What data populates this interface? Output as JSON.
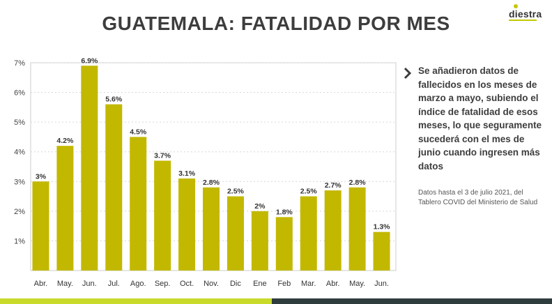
{
  "title": "GUATEMALA: FATALIDAD POR MES",
  "logo": {
    "text": "diestra"
  },
  "note": "Se añadieron datos de fallecidos en los meses de marzo a mayo, subiendo el índice de fatalidad de esos meses, lo que seguramente sucederá con el mes de junio cuando ingresen más datos",
  "source": "Datos hasta el 3 de julio 2021, del Tablero COVID del Ministerio de Salud",
  "colors": {
    "bar": "#c3b800",
    "accent": "#c9da2b",
    "dark": "#2f3c3e",
    "text": "#3d3d3d"
  },
  "chart_data": {
    "type": "bar",
    "title": "",
    "xlabel": "",
    "ylabel": "",
    "categories": [
      "Abr.",
      "May.",
      "Jun.",
      "Jul.",
      "Ago.",
      "Sep.",
      "Oct.",
      "Nov.",
      "Dic",
      "Ene",
      "Feb",
      "Mar.",
      "Abr.",
      "May.",
      "Jun."
    ],
    "values": [
      3,
      4.2,
      6.9,
      5.6,
      4.5,
      3.7,
      3.1,
      2.8,
      2.5,
      2,
      1.8,
      2.5,
      2.7,
      2.8,
      1.3
    ],
    "data_labels": [
      "3%",
      "4.2%",
      "6.9%",
      "5.6%",
      "4.5%",
      "3.7%",
      "3.1%",
      "2.8%",
      "2.5%",
      "2%",
      "1.8%",
      "2.5%",
      "2.7%",
      "2.8%",
      "1.3%"
    ],
    "yticks": [
      "1%",
      "2%",
      "3%",
      "4%",
      "5%",
      "6%",
      "7%"
    ],
    "ytick_values": [
      1,
      2,
      3,
      4,
      5,
      6,
      7
    ],
    "ylim": [
      0,
      7
    ],
    "grid": true,
    "legend": "none"
  }
}
